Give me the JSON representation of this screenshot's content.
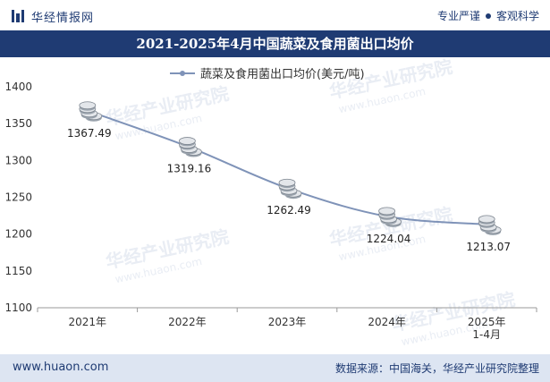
{
  "header": {
    "brand": "华经情报网",
    "tag1": "专业严谨",
    "tag2": "客观科学"
  },
  "watermark": "华经产业研究院",
  "watermark_url": "www.huaon.com",
  "chart_data": {
    "type": "line",
    "title": "2021-2025年4月中国蔬菜及食用菌出口均价",
    "legend": "蔬菜及食用菌出口均价(美元/吨)",
    "categories": [
      "2021年",
      "2022年",
      "2023年",
      "2024年",
      "2025年\n1-4月"
    ],
    "values": [
      1367.49,
      1319.16,
      1262.49,
      1224.04,
      1213.07
    ],
    "value_labels": [
      "1367.49",
      "1319.16",
      "1262.49",
      "1224.04",
      "1213.07"
    ],
    "ylim": [
      1100,
      1400
    ],
    "yticks": [
      1100,
      1150,
      1200,
      1250,
      1300,
      1350,
      1400
    ],
    "ytick_labels": [
      "1100",
      "1150",
      "1200",
      "1250",
      "1300",
      "1350",
      "1400"
    ],
    "xlabel": "",
    "ylabel": "",
    "line_color": "#7f93b8",
    "grid": false
  },
  "footer": {
    "site": "www.huaon.com",
    "source": "数据来源：中国海关，华经产业研究院整理"
  }
}
